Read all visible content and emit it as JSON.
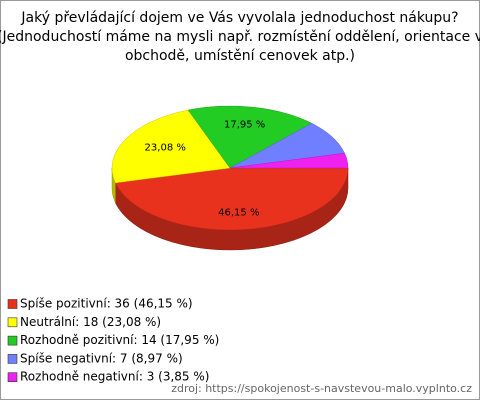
{
  "chart_data": {
    "type": "pie3d",
    "title": [
      "Jaký převládající dojem ve Vás vyvolala jednoduchost nákupu?",
      "(Jednoduchostí máme na mysli např. rozmístění oddělení, orientace v",
      "obchodě, umístění cenovek atp.)"
    ],
    "categories": [
      "Spíše pozitivní: 36 (46,15 %)",
      "Neutrální: 18 (23,08 %)",
      "Rozhodně pozitivní: 14 (17,95 %)",
      "Spíše negativní: 7 (8,97 %)",
      "Rozhodně negativní: 3 (3,85 %)"
    ],
    "values": [
      46.15,
      23.08,
      17.95,
      8.97,
      3.85
    ],
    "value_labels": [
      "46,15 %",
      "23,08 %",
      "17,95 %",
      null,
      null
    ],
    "colors": [
      "#e8321e",
      "#ffff00",
      "#22cc22",
      "#6f7fff",
      "#ee22ee"
    ],
    "source": "zdroj: https://spokojenost-s-navstevou-malo.vyplnto.cz"
  }
}
